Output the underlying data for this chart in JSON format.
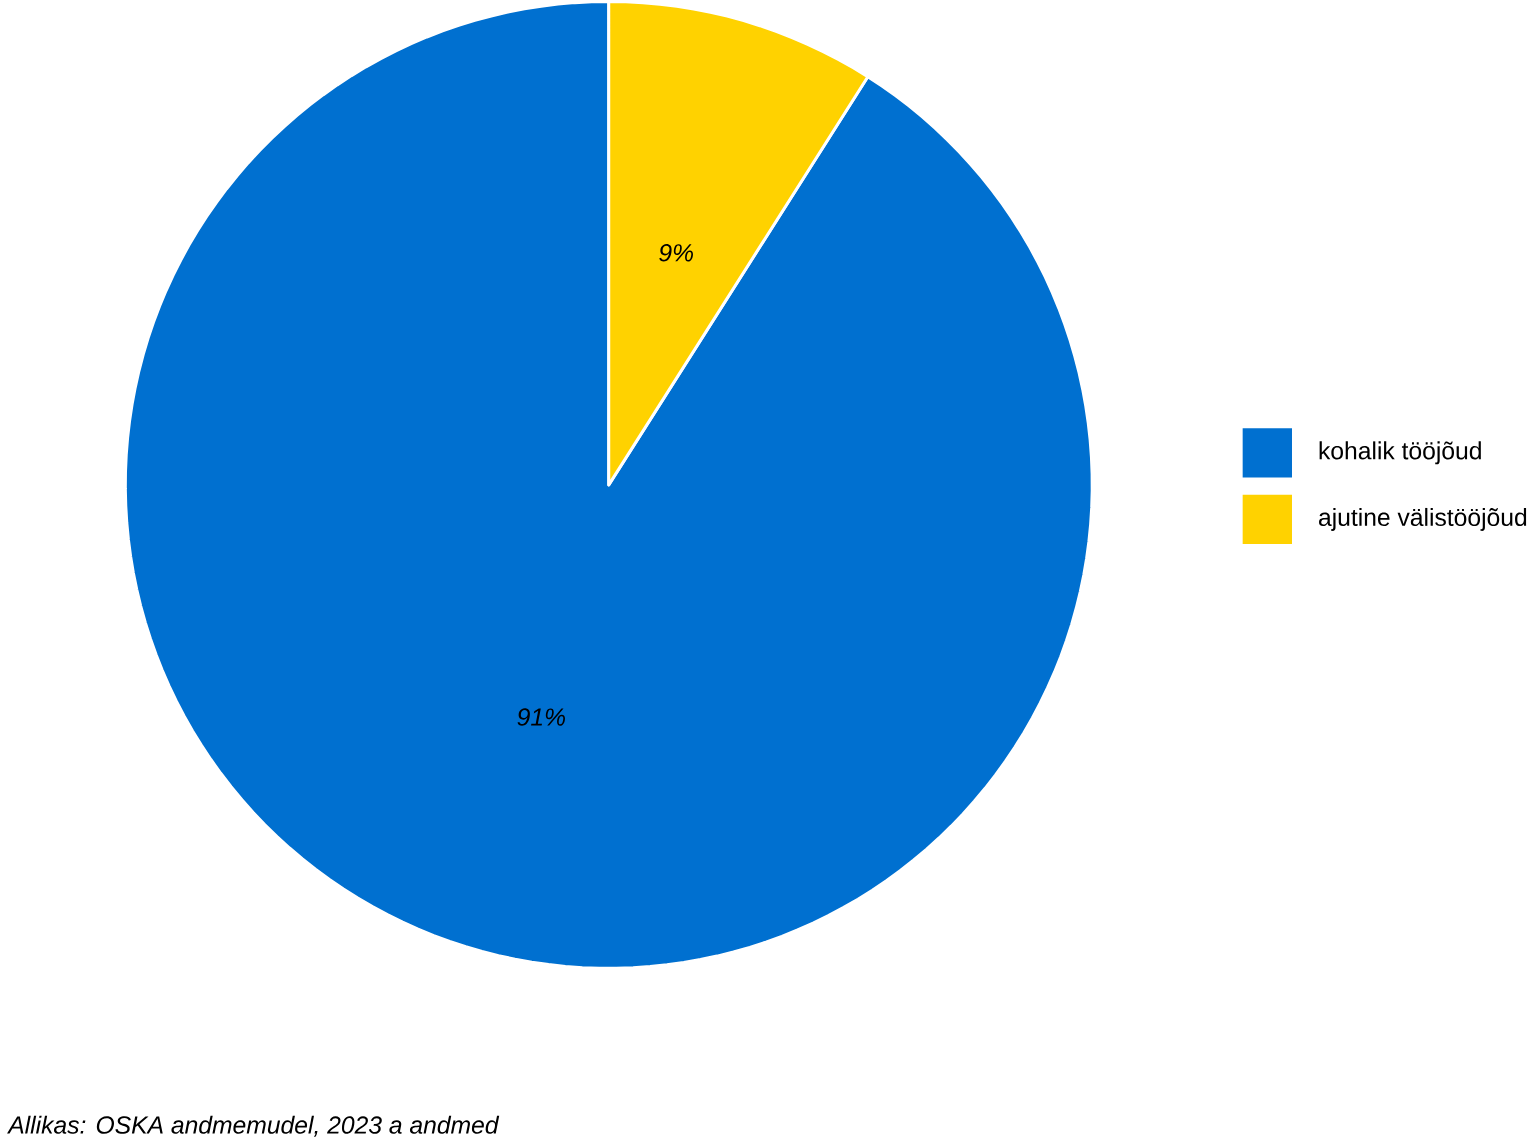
{
  "chart_data": {
    "type": "pie",
    "categories": [
      "kohalik tööjõud",
      "ajutine välistööjõud"
    ],
    "values": [
      91,
      9
    ],
    "colors": [
      "#0070d0",
      "#ffd200"
    ],
    "value_labels": [
      "91%",
      "9%"
    ],
    "legend": "right",
    "annotations": [
      "Allikas: OSKA andmemudel, 2023 a andmed"
    ]
  }
}
